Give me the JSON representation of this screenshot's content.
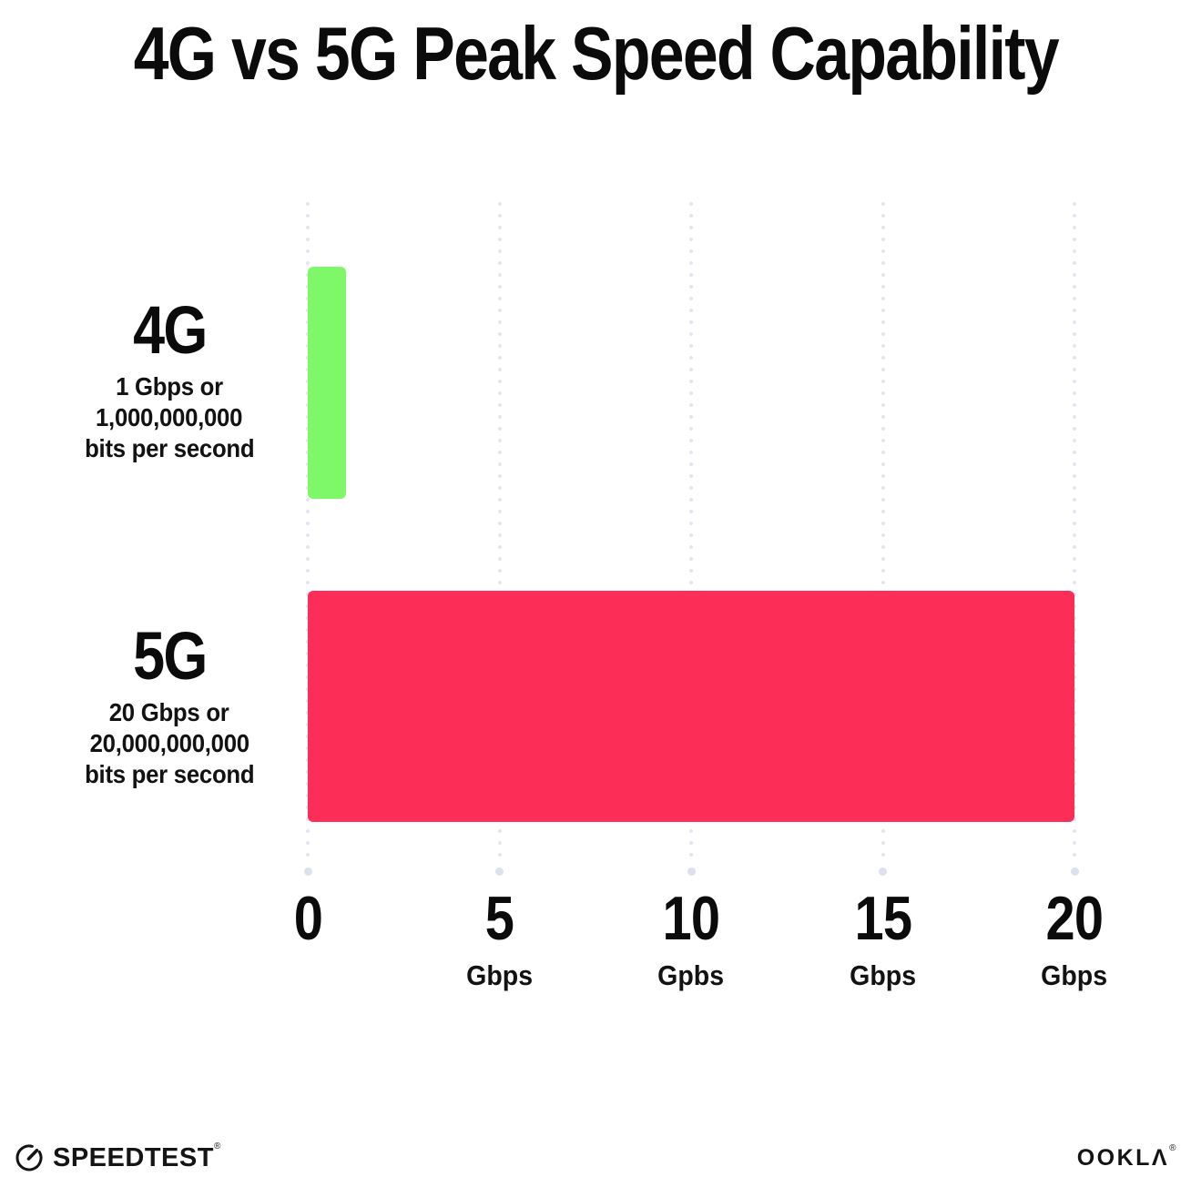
{
  "title": "4G vs 5G Peak Speed Capability",
  "chart_data": {
    "type": "bar",
    "orientation": "horizontal",
    "title": "4G vs 5G Peak Speed Capability",
    "categories": [
      "4G",
      "5G"
    ],
    "values": [
      1,
      20
    ],
    "value_unit": "Gbps",
    "xlim": [
      0,
      20
    ],
    "grid": "dotted vertical gridlines at each tick, ending in a larger dot; no solid axis lines",
    "legend": "none",
    "rows": [
      {
        "name": "4G",
        "value": 1,
        "color": "#7ef869",
        "sub_lines": [
          "1 Gbps or",
          "1,000,000,000",
          "bits per second"
        ]
      },
      {
        "name": "5G",
        "value": 20,
        "color": "#fc2e58",
        "sub_lines": [
          "20 Gbps or",
          "20,000,000,000",
          "bits per second"
        ]
      }
    ],
    "x_ticks": [
      {
        "value": 0,
        "label": "0",
        "unit": ""
      },
      {
        "value": 5,
        "label": "5",
        "unit": "Gbps"
      },
      {
        "value": 10,
        "label": "10",
        "unit": "Gpbs"
      },
      {
        "value": 15,
        "label": "15",
        "unit": "Gbps"
      },
      {
        "value": 20,
        "label": "20",
        "unit": "Gbps"
      }
    ]
  },
  "footer": {
    "speedtest_label": "SPEEDTEST",
    "speedtest_mark": "®",
    "ookla_label": "OOKLΛ",
    "ookla_mark": "®"
  },
  "colors": {
    "bar_4g": "#7ef869",
    "bar_5g": "#fc2e58",
    "grid_dot": "#e3e5f1",
    "grid_end_dot": "#dde0ee",
    "text": "#0b0b0b",
    "background": "#ffffff"
  }
}
